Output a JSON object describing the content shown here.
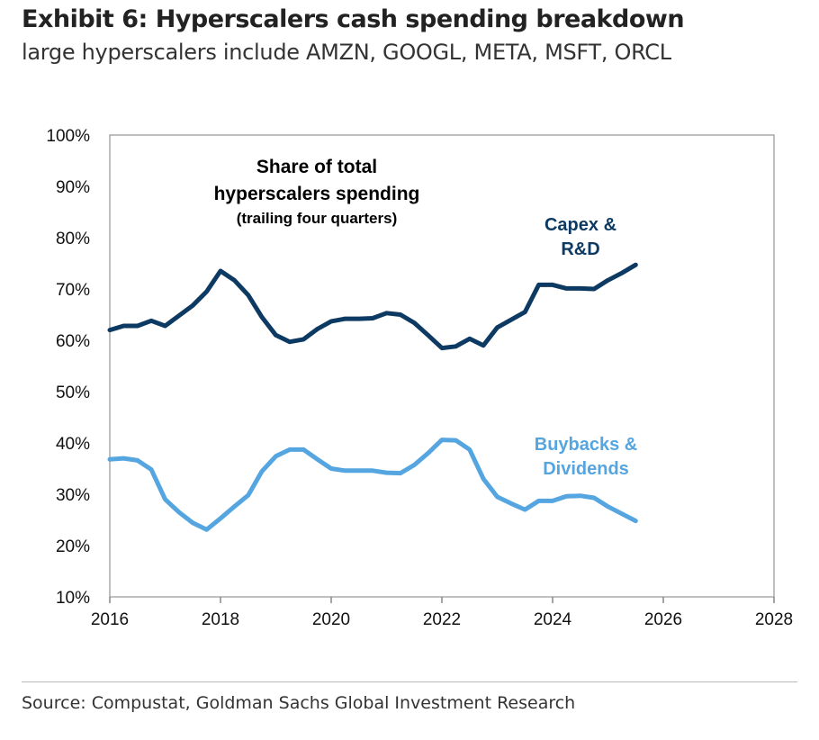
{
  "chart_data": {
    "type": "line",
    "title": "Exhibit 6: Hyperscalers cash spending breakdown",
    "subtitle": "large hyperscalers include AMZN, GOOGL, META, MSFT, ORCL",
    "annotation": [
      "Share of total",
      "hyperscalers spending",
      "(trailing four quarters)"
    ],
    "xlim": [
      2016,
      2028
    ],
    "ylim": [
      10,
      100
    ],
    "x_ticks": [
      "2016",
      "2018",
      "2020",
      "2022",
      "2024",
      "2026",
      "2028"
    ],
    "y_ticks": [
      "10%",
      "20%",
      "30%",
      "40%",
      "50%",
      "60%",
      "70%",
      "80%",
      "90%",
      "100%"
    ],
    "x_start": 2016,
    "x_step": 0.25,
    "series": [
      {
        "name": "Capex & R&D",
        "label": [
          "Capex &",
          "R&D"
        ],
        "color": "#0d3a63",
        "values": [
          62,
          62.8,
          62.8,
          63.8,
          62.8,
          64.8,
          66.8,
          69.5,
          73.5,
          71.7,
          68.8,
          64.5,
          61,
          59.7,
          60.2,
          62.2,
          63.7,
          64.2,
          64.2,
          64.3,
          65.3,
          65,
          63.4,
          61,
          58.5,
          58.8,
          60.3,
          59,
          62.5,
          64,
          65.5,
          70.8,
          70.8,
          70.1,
          70.1,
          70,
          71.7,
          73.1,
          74.7
        ]
      },
      {
        "name": "Buybacks & Dividends",
        "label": [
          "Buybacks &",
          "Dividends"
        ],
        "color": "#55a5e0",
        "values": [
          36.8,
          37,
          36.6,
          34.8,
          29,
          26.5,
          24.4,
          23.1,
          25.3,
          27.6,
          29.8,
          34.5,
          37.4,
          38.7,
          38.7,
          36.8,
          35,
          34.6,
          34.6,
          34.6,
          34.2,
          34.1,
          35.7,
          38,
          40.6,
          40.5,
          38.7,
          33,
          29.5,
          28.2,
          27,
          28.7,
          28.7,
          29.6,
          29.7,
          29.3,
          27.6,
          26.2,
          24.8
        ]
      }
    ]
  },
  "source": "Source: Compustat, Goldman Sachs Global Investment Research"
}
